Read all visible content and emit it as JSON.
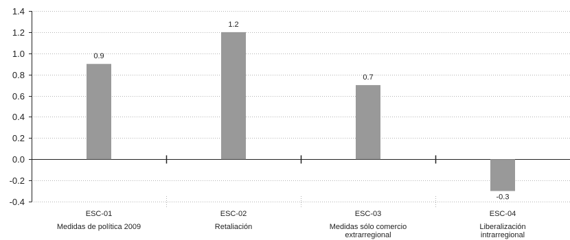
{
  "chart_data": {
    "type": "bar",
    "categories": [
      {
        "code": "ESC-01",
        "name": [
          "Medidas de política 2009"
        ]
      },
      {
        "code": "ESC-02",
        "name": [
          "Retaliación"
        ]
      },
      {
        "code": "ESC-03",
        "name": [
          "Medidas sólo comercio",
          "extrarregional"
        ]
      },
      {
        "code": "ESC-04",
        "name": [
          "Liberalización",
          "intrarregional"
        ]
      }
    ],
    "values": [
      0.9,
      1.2,
      0.7,
      -0.3
    ],
    "value_labels": [
      "0.9",
      "1.2",
      "0.7",
      "-0.3"
    ],
    "ylim": [
      -0.4,
      1.4
    ],
    "yticks": [
      -0.4,
      -0.2,
      0.0,
      0.2,
      0.4,
      0.6,
      0.8,
      1.0,
      1.2,
      1.4
    ],
    "ytick_labels": [
      "-0.4",
      "-0.2",
      "0.0",
      "0.2",
      "0.4",
      "0.6",
      "0.8",
      "1.0",
      "1.2",
      "1.4"
    ],
    "grid": "horizontal dotted",
    "title": "",
    "xlabel": "",
    "ylabel": "",
    "colors": {
      "bar": "#999999",
      "grid": "#b3b3b3",
      "axis": "#222222",
      "zero_line": "#222222"
    }
  }
}
